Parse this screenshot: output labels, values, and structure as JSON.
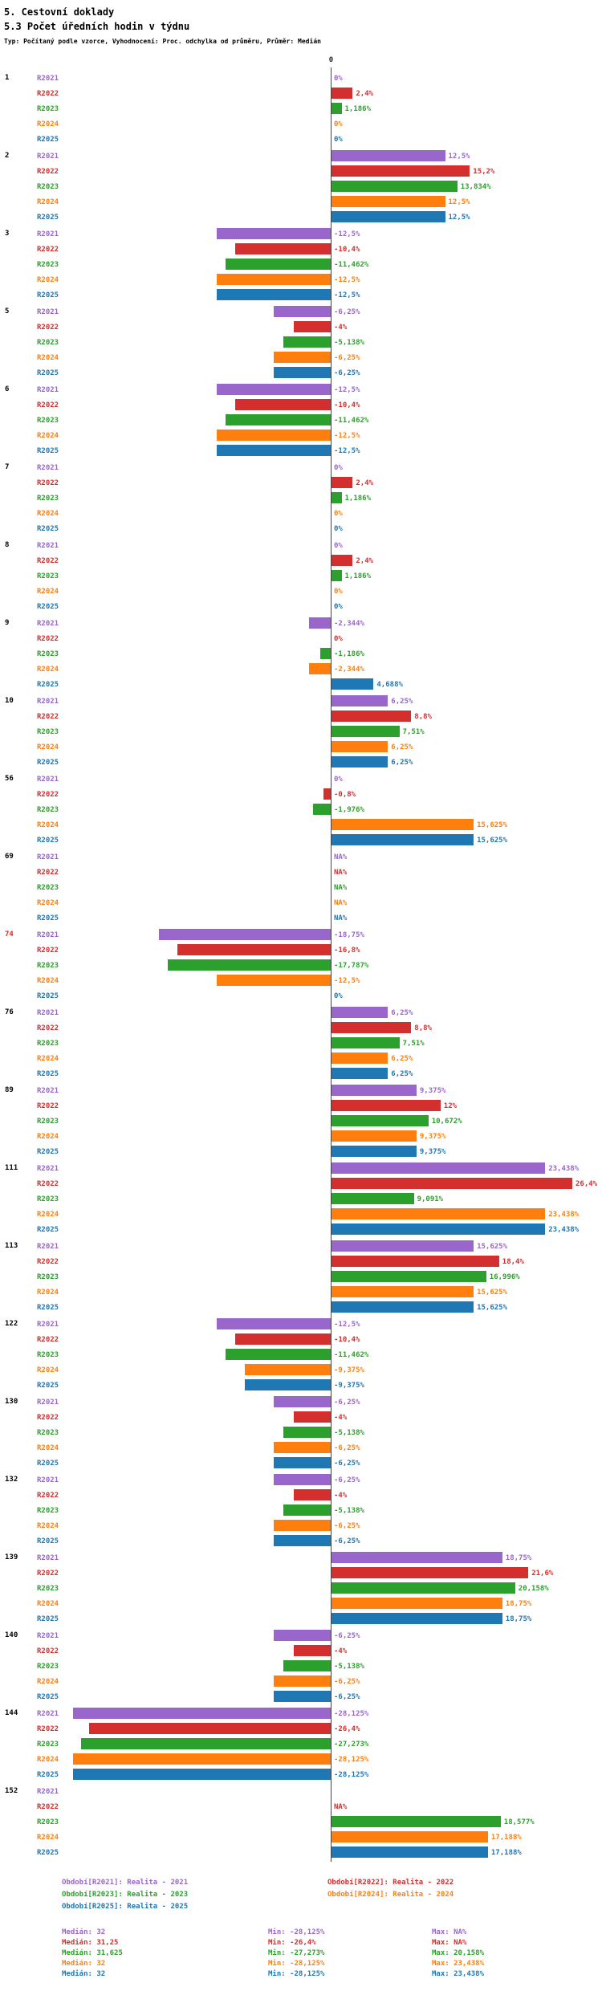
{
  "header": {
    "section_title": "5. Cestovní doklady",
    "chart_title": "5.3 Počet úředních hodin v týdnu",
    "subtitle": "Typ: Počítaný podle vzorce, Vyhodnocení: Proc. odchylka od průměru, Průměr: Medián"
  },
  "chart_data": {
    "type": "bar",
    "orientation": "horizontal",
    "unit": "%",
    "axis": {
      "zero_label": "0",
      "xlim": [
        -30,
        30
      ],
      "grid": false
    },
    "series_names": [
      "R2021",
      "R2022",
      "R2023",
      "R2024",
      "R2025"
    ],
    "series_colors": [
      "#9966CC",
      "#D32F2F",
      "#2CA02C",
      "#FF7F0E",
      "#1F77B4"
    ],
    "groups": [
      {
        "id": "1",
        "values": [
          0,
          2.4,
          1.186,
          0,
          0
        ],
        "labels": [
          "0%",
          "2,4%",
          "1,186%",
          "0%",
          "0%"
        ]
      },
      {
        "id": "2",
        "values": [
          12.5,
          15.2,
          13.834,
          12.5,
          12.5
        ],
        "labels": [
          "12,5%",
          "15,2%",
          "13,834%",
          "12,5%",
          "12,5%"
        ]
      },
      {
        "id": "3",
        "values": [
          -12.5,
          -10.4,
          -11.462,
          -12.5,
          -12.5
        ],
        "labels": [
          "-12,5%",
          "-10,4%",
          "-11,462%",
          "-12,5%",
          "-12,5%"
        ]
      },
      {
        "id": "5",
        "values": [
          -6.25,
          -4,
          -5.138,
          -6.25,
          -6.25
        ],
        "labels": [
          "-6,25%",
          "-4%",
          "-5,138%",
          "-6,25%",
          "-6,25%"
        ]
      },
      {
        "id": "6",
        "values": [
          -12.5,
          -10.4,
          -11.462,
          -12.5,
          -12.5
        ],
        "labels": [
          "-12,5%",
          "-10,4%",
          "-11,462%",
          "-12,5%",
          "-12,5%"
        ]
      },
      {
        "id": "7",
        "values": [
          0,
          2.4,
          1.186,
          0,
          0
        ],
        "labels": [
          "0%",
          "2,4%",
          "1,186%",
          "0%",
          "0%"
        ]
      },
      {
        "id": "8",
        "values": [
          0,
          2.4,
          1.186,
          0,
          0
        ],
        "labels": [
          "0%",
          "2,4%",
          "1,186%",
          "0%",
          "0%"
        ]
      },
      {
        "id": "9",
        "values": [
          -2.344,
          0,
          -1.186,
          -2.344,
          4.688
        ],
        "labels": [
          "-2,344%",
          "0%",
          "-1,186%",
          "-2,344%",
          "4,688%"
        ]
      },
      {
        "id": "10",
        "values": [
          6.25,
          8.8,
          7.51,
          6.25,
          6.25
        ],
        "labels": [
          "6,25%",
          "8,8%",
          "7,51%",
          "6,25%",
          "6,25%"
        ]
      },
      {
        "id": "56",
        "values": [
          0,
          -0.8,
          -1.976,
          15.625,
          15.625
        ],
        "labels": [
          "0%",
          "-0,8%",
          "-1,976%",
          "15,625%",
          "15,625%"
        ]
      },
      {
        "id": "69",
        "values": [
          null,
          null,
          null,
          null,
          null
        ],
        "labels": [
          "NA%",
          "NA%",
          "NA%",
          "NA%",
          "NA%"
        ]
      },
      {
        "id": "74",
        "label_color": "#D32F2F",
        "values": [
          -18.75,
          -16.8,
          -17.787,
          -12.5,
          0
        ],
        "labels": [
          "-18,75%",
          "-16,8%",
          "-17,787%",
          "-12,5%",
          "0%"
        ]
      },
      {
        "id": "76",
        "values": [
          6.25,
          8.8,
          7.51,
          6.25,
          6.25
        ],
        "labels": [
          "6,25%",
          "8,8%",
          "7,51%",
          "6,25%",
          "6,25%"
        ]
      },
      {
        "id": "89",
        "values": [
          9.375,
          12,
          10.672,
          9.375,
          9.375
        ],
        "labels": [
          "9,375%",
          "12%",
          "10,672%",
          "9,375%",
          "9,375%"
        ]
      },
      {
        "id": "111",
        "values": [
          23.438,
          26.4,
          9.091,
          23.438,
          23.438
        ],
        "labels": [
          "23,438%",
          "26,4%",
          "9,091%",
          "23,438%",
          "23,438%"
        ]
      },
      {
        "id": "113",
        "values": [
          15.625,
          18.4,
          16.996,
          15.625,
          15.625
        ],
        "labels": [
          "15,625%",
          "18,4%",
          "16,996%",
          "15,625%",
          "15,625%"
        ]
      },
      {
        "id": "122",
        "values": [
          -12.5,
          -10.4,
          -11.462,
          -9.375,
          -9.375
        ],
        "labels": [
          "-12,5%",
          "-10,4%",
          "-11,462%",
          "-9,375%",
          "-9,375%"
        ]
      },
      {
        "id": "130",
        "values": [
          -6.25,
          -4,
          -5.138,
          -6.25,
          -6.25
        ],
        "labels": [
          "-6,25%",
          "-4%",
          "-5,138%",
          "-6,25%",
          "-6,25%"
        ]
      },
      {
        "id": "132",
        "values": [
          -6.25,
          -4,
          -5.138,
          -6.25,
          -6.25
        ],
        "labels": [
          "-6,25%",
          "-4%",
          "-5,138%",
          "-6,25%",
          "-6,25%"
        ]
      },
      {
        "id": "139",
        "values": [
          18.75,
          21.6,
          20.158,
          18.75,
          18.75
        ],
        "labels": [
          "18,75%",
          "21,6%",
          "20,158%",
          "18,75%",
          "18,75%"
        ]
      },
      {
        "id": "140",
        "values": [
          -6.25,
          -4,
          -5.138,
          -6.25,
          -6.25
        ],
        "labels": [
          "-6,25%",
          "-4%",
          "-5,138%",
          "-6,25%",
          "-6,25%"
        ]
      },
      {
        "id": "144",
        "values": [
          -28.125,
          -26.4,
          -27.273,
          -28.125,
          -28.125
        ],
        "labels": [
          "-28,125%",
          "-26,4%",
          "-27,273%",
          "-28,125%",
          "-28,125%"
        ]
      },
      {
        "id": "152",
        "values": [
          null,
          null,
          18.577,
          17.188,
          17.188
        ],
        "labels": [
          "",
          "NA%",
          "18,577%",
          "17,188%",
          "17,188%"
        ]
      }
    ]
  },
  "legend": {
    "items": [
      {
        "label": "Období[R2021]: Realita - 2021"
      },
      {
        "label": "Období[R2022]: Realita - 2022"
      },
      {
        "label": "Období[R2023]: Realita - 2023"
      },
      {
        "label": "Období[R2024]: Realita - 2024"
      },
      {
        "label": "Období[R2025]: Realita - 2025"
      }
    ]
  },
  "stats": {
    "rows": [
      {
        "median": "Medián: 32",
        "min": "Min: -28,125%",
        "max": "Max: NA%"
      },
      {
        "median": "Medián: 31,25",
        "min": "Min: -26,4%",
        "max": "Max: NA%"
      },
      {
        "median": "Medián: 31,625",
        "min": "Min: -27,273%",
        "max": "Max: 20,158%"
      },
      {
        "median": "Medián: 32",
        "min": "Min: -28,125%",
        "max": "Max: 23,438%"
      },
      {
        "median": "Medián: 32",
        "min": "Min: -28,125%",
        "max": "Max: 23,438%"
      }
    ]
  }
}
